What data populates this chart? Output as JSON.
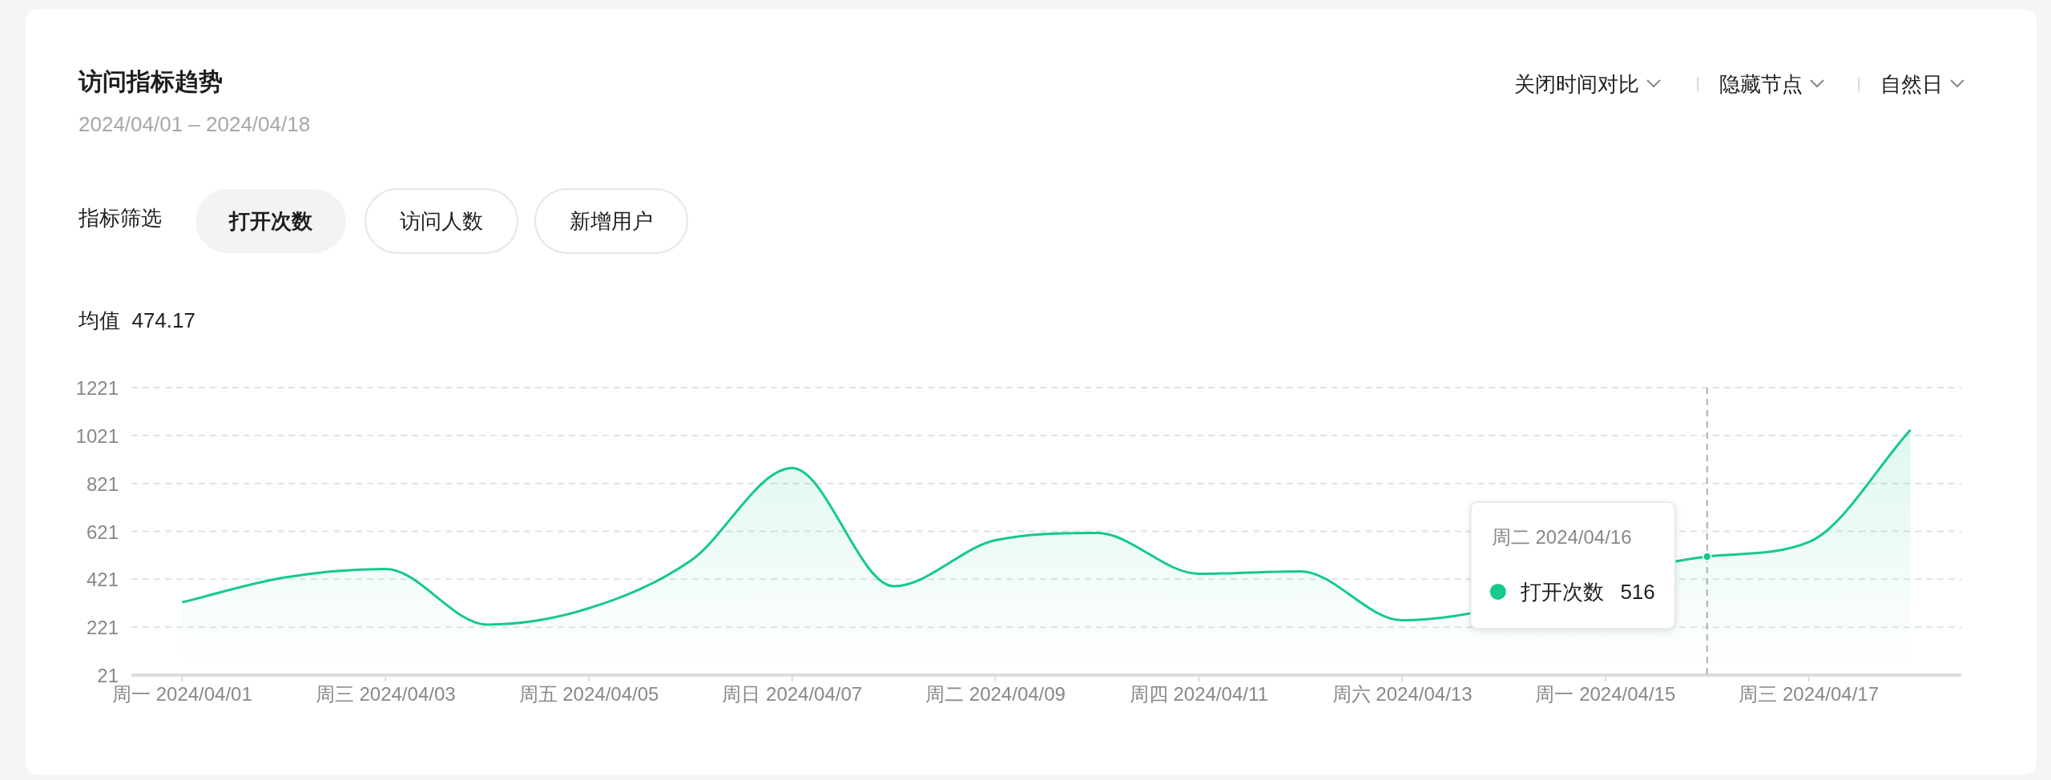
{
  "chart_data": {
    "type": "area",
    "title": "访问指标趋势",
    "subtitle": "2024/04/01 – 2024/04/18",
    "categories": [
      "周一 2024/04/01",
      null,
      "周三 2024/04/03",
      null,
      "周五 2024/04/05",
      null,
      "周日 2024/04/07",
      null,
      "周二 2024/04/09",
      null,
      "周四 2024/04/11",
      null,
      "周六 2024/04/13",
      null,
      "周一 2024/04/15",
      null,
      "周三 2024/04/17",
      null
    ],
    "series": [
      {
        "name": "打开次数",
        "color": "#14c98b",
        "values": [
          325,
          428,
          464,
          232,
          300,
          498,
          885,
          392,
          584,
          614,
          444,
          454,
          250,
          null,
          null,
          516,
          576,
          1045
        ]
      }
    ],
    "ylim": [
      21,
      1221
    ],
    "yticks": [
      21,
      221,
      421,
      621,
      821,
      1021,
      1221
    ],
    "grid": "y",
    "annotations": [
      "关闭时间对比",
      "隐藏节点",
      "自然日",
      "指标筛选",
      "打开次数",
      "访问人数",
      "新增用户",
      "均值  474.17",
      "周二 2024/04/16"
    ],
    "value_labels": [
      null,
      null,
      null,
      null,
      null,
      null,
      null,
      null,
      null,
      null,
      null,
      null,
      null,
      null,
      null,
      "516",
      null,
      null
    ]
  }
}
